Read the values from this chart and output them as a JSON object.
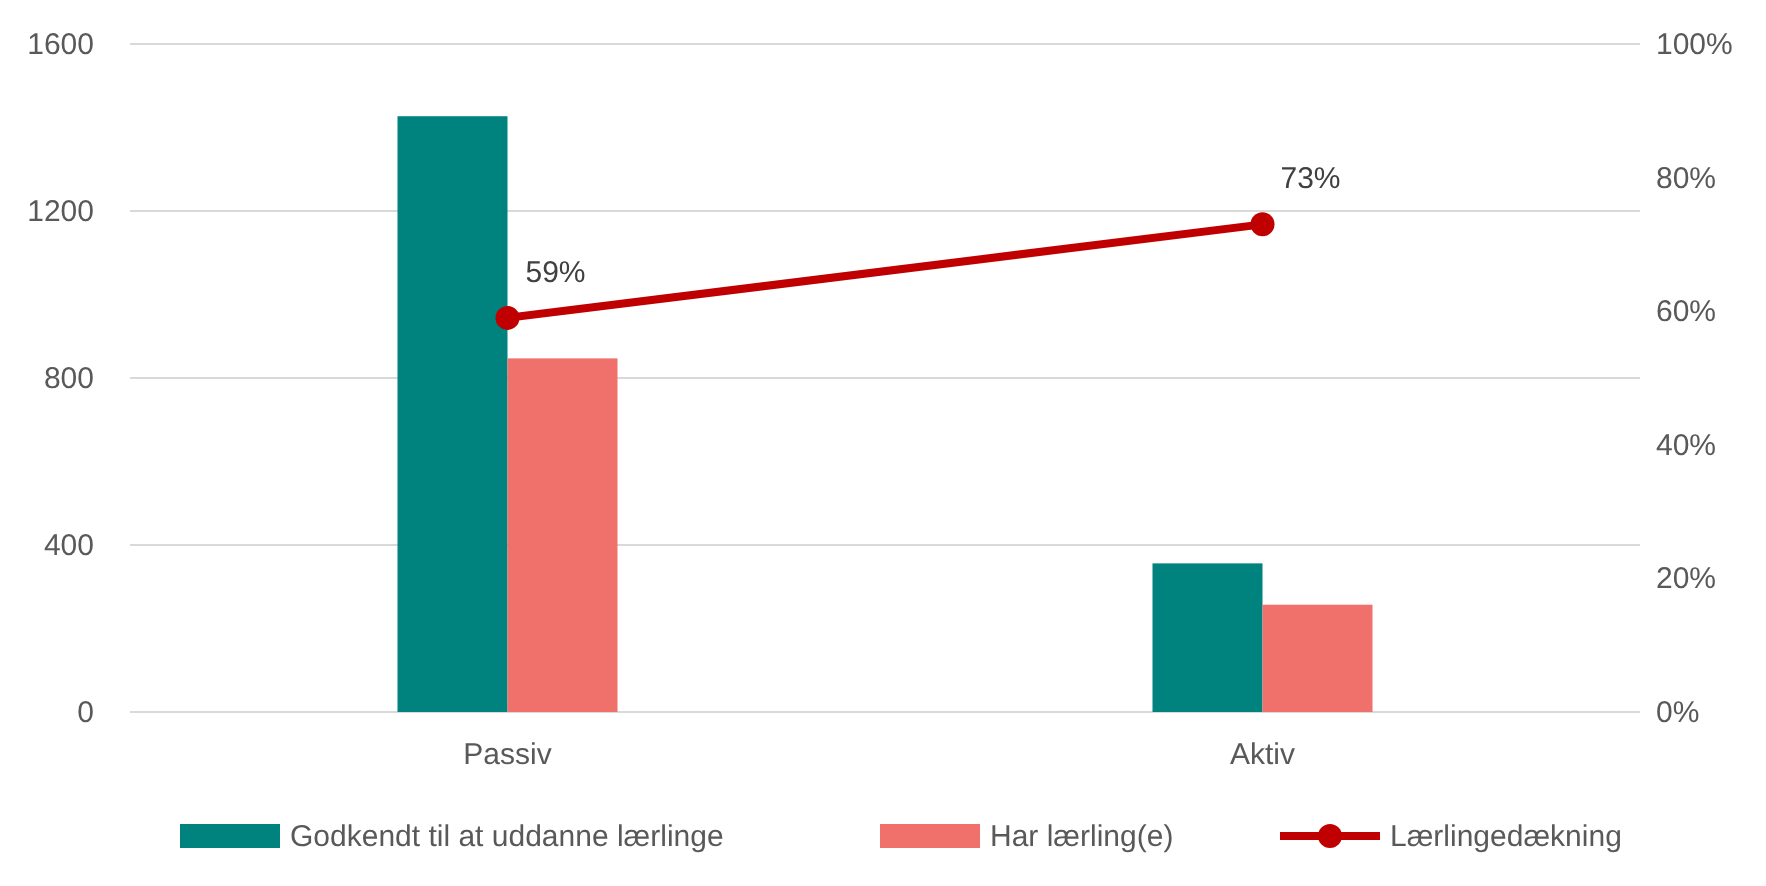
{
  "chart_data": {
    "type": "bar",
    "categories": [
      "Passiv",
      "Aktiv"
    ],
    "series": [
      {
        "name": "Godkendt til at uddanne lærlinge",
        "color": "#00827f",
        "values": [
          1427,
          356
        ]
      },
      {
        "name": "Har lærling(e)",
        "color": "#f0706c",
        "values": [
          847,
          257
        ]
      },
      {
        "name": "Lærlingedækning",
        "type": "line",
        "axis": "y2",
        "color": "#c00000",
        "values": [
          59,
          73
        ],
        "value_labels": [
          "59%",
          "73%"
        ],
        "marker": "circle"
      }
    ],
    "ylim": [
      0,
      1600
    ],
    "yticks": [
      0,
      400,
      800,
      1200,
      1600
    ],
    "y2lim": [
      0,
      100
    ],
    "y2ticks": [
      {
        "value": 0,
        "label": "0%"
      },
      {
        "value": 20,
        "label": "20%"
      },
      {
        "value": 40,
        "label": "40%"
      },
      {
        "value": 60,
        "label": "60%"
      },
      {
        "value": 80,
        "label": "80%"
      },
      {
        "value": 100,
        "label": "100%"
      }
    ],
    "grid": "y",
    "legend": "bottom"
  }
}
